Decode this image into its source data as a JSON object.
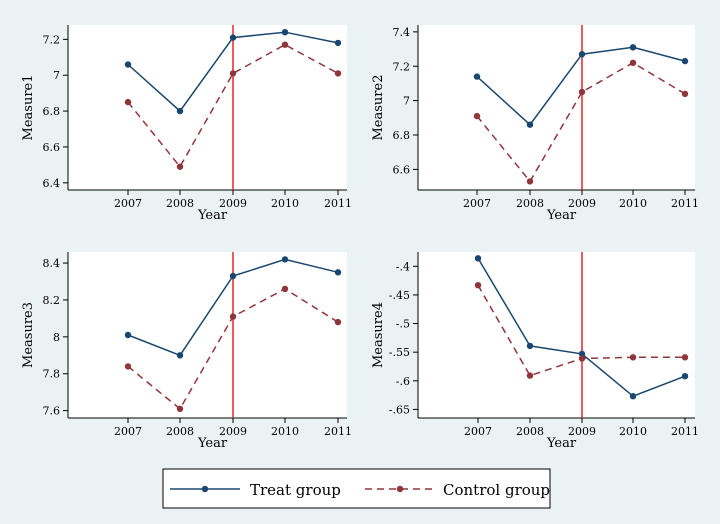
{
  "chart_data": [
    {
      "type": "line",
      "xlabel": "Year",
      "ylabel": "Measure1",
      "categories": [
        "2007",
        "2008",
        "2009",
        "2010",
        "2011"
      ],
      "ylim": [
        6.36,
        7.28
      ],
      "yticks": [
        6.4,
        6.6,
        6.8,
        7.0,
        7.2
      ],
      "ytick_labels": [
        "6.4",
        "6.6",
        "6.8",
        "7",
        "7.2"
      ],
      "vline_x": "2009",
      "series": [
        {
          "name": "Treat group",
          "values": [
            7.06,
            6.8,
            7.21,
            7.24,
            7.18
          ]
        },
        {
          "name": "Control group",
          "values": [
            6.85,
            6.49,
            7.01,
            7.17,
            7.01
          ]
        }
      ]
    },
    {
      "type": "line",
      "xlabel": "Year",
      "ylabel": "Measure2",
      "categories": [
        "2007",
        "2008",
        "2009",
        "2010",
        "2011"
      ],
      "ylim": [
        6.48,
        7.44
      ],
      "yticks": [
        6.6,
        6.8,
        7.0,
        7.2,
        7.4
      ],
      "ytick_labels": [
        "6.6",
        "6.8",
        "7",
        "7.2",
        "7.4"
      ],
      "vline_x": "2009",
      "series": [
        {
          "name": "Treat group",
          "values": [
            7.14,
            6.86,
            7.27,
            7.31,
            7.23
          ]
        },
        {
          "name": "Control group",
          "values": [
            6.91,
            6.53,
            7.05,
            7.22,
            7.04
          ]
        }
      ]
    },
    {
      "type": "line",
      "xlabel": "Year",
      "ylabel": "Measure3",
      "categories": [
        "2007",
        "2008",
        "2009",
        "2010",
        "2011"
      ],
      "ylim": [
        7.56,
        8.46
      ],
      "yticks": [
        7.6,
        7.8,
        8.0,
        8.2,
        8.4
      ],
      "ytick_labels": [
        "7.6",
        "7.8",
        "8",
        "8.2",
        "8.4"
      ],
      "vline_x": "2009",
      "series": [
        {
          "name": "Treat group",
          "values": [
            8.01,
            7.9,
            8.33,
            8.42,
            8.35
          ]
        },
        {
          "name": "Control group",
          "values": [
            7.84,
            7.61,
            8.11,
            8.26,
            8.08
          ]
        }
      ]
    },
    {
      "type": "line",
      "xlabel": "Year",
      "ylabel": "Measure4",
      "categories": [
        "2007",
        "2008",
        "2009",
        "2010",
        "2011"
      ],
      "ylim": [
        -0.665,
        -0.375
      ],
      "yticks": [
        -0.65,
        -0.6,
        -0.55,
        -0.5,
        -0.45,
        -0.4
      ],
      "ytick_labels": [
        "-.65",
        "-.6",
        "-.55",
        "-.5",
        "-.45",
        "-.4"
      ],
      "vline_x": "2009",
      "series": [
        {
          "name": "Treat group",
          "values": [
            -0.386,
            -0.539,
            -0.553,
            -0.627,
            -0.592
          ]
        },
        {
          "name": "Control group",
          "values": [
            -0.433,
            -0.591,
            -0.561,
            -0.559,
            -0.559
          ]
        }
      ]
    }
  ],
  "legend": {
    "items": [
      {
        "label": "Treat group",
        "color": "#1a476f",
        "dash": "solid"
      },
      {
        "label": "Control group",
        "color": "#90353b",
        "dash": "dashed"
      }
    ]
  },
  "colors": {
    "treat": "#1a476f",
    "control": "#90353b",
    "vline": "#e8262a",
    "background": "#eaf2f3",
    "plot_area": "#ffffff"
  }
}
